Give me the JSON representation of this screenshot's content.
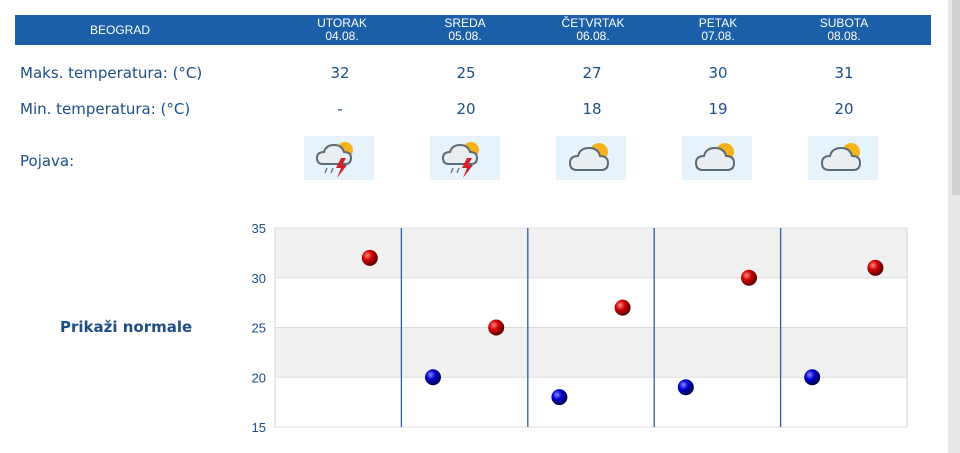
{
  "header": {
    "city": "BEOGRAD",
    "days": [
      {
        "name": "UTORAK",
        "date": "04.08."
      },
      {
        "name": "SREDA",
        "date": "05.08."
      },
      {
        "name": "ČETVRTAK",
        "date": "06.08."
      },
      {
        "name": "PETAK",
        "date": "07.08."
      },
      {
        "name": "SUBOTA",
        "date": "08.08."
      }
    ]
  },
  "rows": {
    "max_label": "Maks. temperatura: (°C)",
    "max_values": [
      "32",
      "25",
      "27",
      "30",
      "31"
    ],
    "min_label": "Min. temperatura: (°C)",
    "min_values": [
      "-",
      "20",
      "18",
      "19",
      "20"
    ],
    "weather_label": "Pojava:",
    "weather_icons": [
      "thunderstorm-icon",
      "thunderstorm-icon",
      "partly-cloudy-icon",
      "partly-cloudy-icon",
      "partly-cloudy-icon"
    ]
  },
  "normals_link": "Prikaži normale",
  "colors": {
    "header_bg": "#1b5fa8",
    "text": "#1b4f86",
    "max_marker": "#c40000",
    "min_marker": "#0000b8",
    "divider": "#2a5fa0"
  },
  "chart_data": {
    "type": "scatter",
    "categories": [
      "UTORAK 04.08.",
      "SREDA 05.08.",
      "ČETVRTAK 06.08.",
      "PETAK 07.08.",
      "SUBOTA 08.08."
    ],
    "series": [
      {
        "values": [
          32,
          25,
          27,
          30,
          31
        ]
      },
      {
        "values": [
          null,
          20,
          18,
          19,
          20
        ]
      }
    ],
    "yticks": [
      "35",
      "30",
      "25",
      "20",
      "15"
    ],
    "ylim": [
      15,
      35
    ],
    "grid": true
  }
}
